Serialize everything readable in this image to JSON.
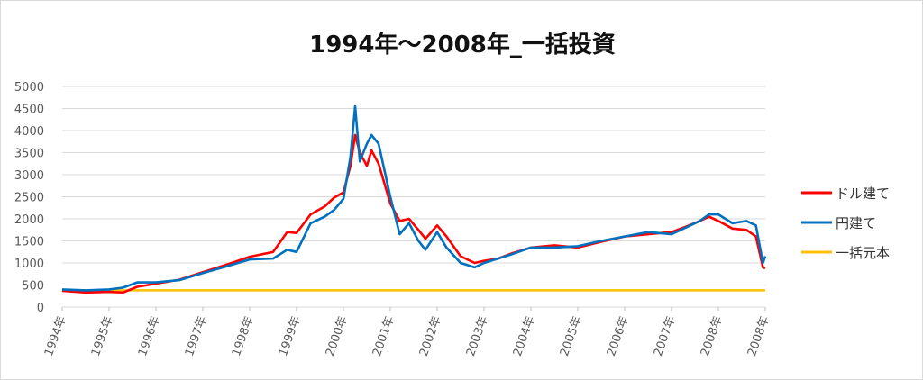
{
  "chart_data": {
    "type": "line",
    "title": "1994年～2008年_一括投資",
    "ylim": [
      0,
      5000
    ],
    "yticks": [
      0,
      500,
      1000,
      1500,
      2000,
      2500,
      3000,
      3500,
      4000,
      4500,
      5000
    ],
    "xticks": [
      "1994年",
      "1995年",
      "1996年",
      "1997年",
      "1998年",
      "1999年",
      "2000年",
      "2001年",
      "2002年",
      "2003年",
      "2004年",
      "2005年",
      "2006年",
      "2007年",
      "2008年",
      "2008年"
    ],
    "grid": true,
    "legend_position": "right",
    "series": [
      {
        "name": "ドル建て",
        "color": "#ff0000",
        "x": [
          1994.0,
          1994.5,
          1995.0,
          1995.3,
          1995.6,
          1996.0,
          1996.5,
          1997.0,
          1997.5,
          1998.0,
          1998.5,
          1998.8,
          1999.0,
          1999.3,
          1999.6,
          1999.8,
          2000.0,
          2000.15,
          2000.25,
          2000.35,
          2000.5,
          2000.6,
          2000.75,
          2001.0,
          2001.2,
          2001.4,
          2001.6,
          2001.75,
          2002.0,
          2002.2,
          2002.5,
          2002.8,
          2003.0,
          2003.3,
          2003.6,
          2004.0,
          2004.5,
          2005.0,
          2005.5,
          2006.0,
          2006.5,
          2007.0,
          2007.3,
          2007.6,
          2007.8,
          2008.0,
          2008.3,
          2008.6,
          2008.8,
          2008.95,
          2009.0
        ],
        "y": [
          370,
          330,
          345,
          330,
          460,
          530,
          620,
          790,
          960,
          1140,
          1250,
          1700,
          1680,
          2100,
          2280,
          2480,
          2600,
          3200,
          3900,
          3500,
          3200,
          3550,
          3250,
          2350,
          1950,
          2000,
          1750,
          1550,
          1850,
          1600,
          1150,
          1000,
          1050,
          1100,
          1220,
          1350,
          1400,
          1350,
          1480,
          1600,
          1650,
          1700,
          1820,
          1950,
          2050,
          1950,
          1780,
          1750,
          1600,
          900,
          880
        ]
      },
      {
        "name": "円建て",
        "color": "#0070c0",
        "x": [
          1994.0,
          1994.5,
          1995.0,
          1995.3,
          1995.6,
          1996.0,
          1996.5,
          1997.0,
          1997.5,
          1998.0,
          1998.5,
          1998.8,
          1999.0,
          1999.3,
          1999.6,
          1999.8,
          2000.0,
          2000.15,
          2000.25,
          2000.35,
          2000.5,
          2000.6,
          2000.75,
          2001.0,
          2001.2,
          2001.4,
          2001.6,
          2001.75,
          2002.0,
          2002.2,
          2002.5,
          2002.8,
          2003.0,
          2003.3,
          2003.6,
          2004.0,
          2004.5,
          2005.0,
          2005.5,
          2006.0,
          2006.5,
          2007.0,
          2007.3,
          2007.6,
          2007.8,
          2008.0,
          2008.3,
          2008.6,
          2008.8,
          2008.95,
          2009.0
        ],
        "y": [
          400,
          380,
          400,
          440,
          560,
          560,
          610,
          770,
          920,
          1080,
          1100,
          1300,
          1250,
          1900,
          2050,
          2200,
          2450,
          3400,
          4550,
          3300,
          3700,
          3900,
          3700,
          2500,
          1650,
          1900,
          1500,
          1300,
          1700,
          1350,
          1000,
          900,
          1000,
          1100,
          1200,
          1350,
          1350,
          1380,
          1500,
          1600,
          1700,
          1650,
          1800,
          1950,
          2100,
          2100,
          1900,
          1950,
          1850,
          1000,
          1150
        ]
      },
      {
        "name": "一括元本",
        "color": "#ffc000",
        "x": [
          1994.0,
          2009.0
        ],
        "y": [
          380,
          380
        ]
      }
    ]
  }
}
